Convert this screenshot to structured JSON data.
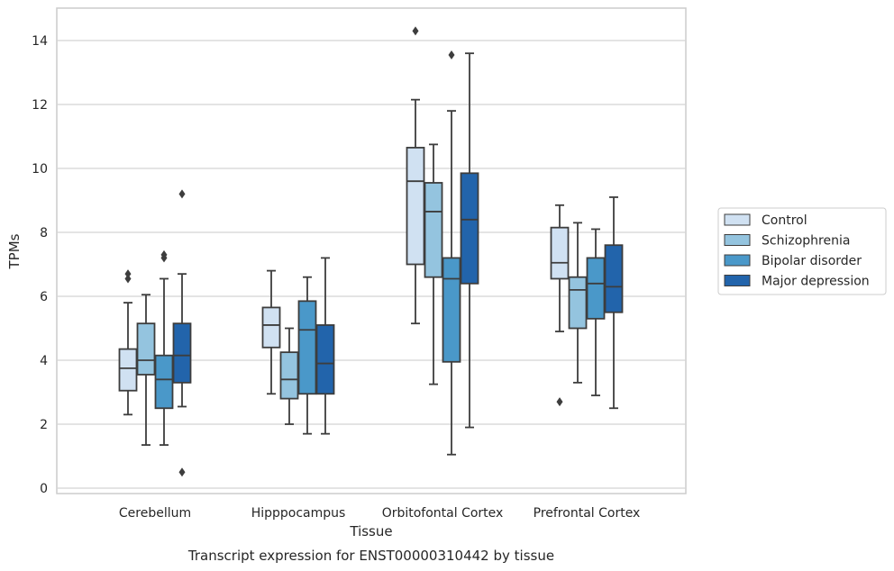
{
  "caption": "Transcript expression for ENST00000310442 by tissue",
  "chart_data": {
    "type": "box",
    "xlabel": "Tissue",
    "ylabel": "TPMs",
    "ylim": [
      -0.15,
      15
    ],
    "yticks": [
      0,
      2,
      4,
      6,
      8,
      10,
      12,
      14
    ],
    "grid": "horizontal",
    "legend_position": "right",
    "categories": [
      "Cerebellum",
      "Hipppocampus",
      "Orbitofontal Cortex",
      "Prefrontal Cortex"
    ],
    "series": [
      {
        "name": "Control",
        "color": "#d0e1f2",
        "boxes": [
          {
            "whisker_low": 2.3,
            "q1": 3.05,
            "median": 3.75,
            "q3": 4.35,
            "whisker_high": 5.8,
            "outliers": [
              6.55,
              6.7
            ]
          },
          {
            "whisker_low": 2.95,
            "q1": 4.4,
            "median": 5.1,
            "q3": 5.65,
            "whisker_high": 6.8,
            "outliers": []
          },
          {
            "whisker_low": 5.15,
            "q1": 7.0,
            "median": 9.6,
            "q3": 10.65,
            "whisker_high": 12.15,
            "outliers": [
              14.3
            ]
          },
          {
            "whisker_low": 4.9,
            "q1": 6.55,
            "median": 7.05,
            "q3": 8.15,
            "whisker_high": 8.85,
            "outliers": [
              2.7
            ]
          }
        ]
      },
      {
        "name": "Schizophrenia",
        "color": "#94c4df",
        "boxes": [
          {
            "whisker_low": 1.35,
            "q1": 3.55,
            "median": 4.0,
            "q3": 5.15,
            "whisker_high": 6.05,
            "outliers": []
          },
          {
            "whisker_low": 2.0,
            "q1": 2.8,
            "median": 3.4,
            "q3": 4.25,
            "whisker_high": 5.0,
            "outliers": []
          },
          {
            "whisker_low": 3.25,
            "q1": 6.6,
            "median": 8.65,
            "q3": 9.55,
            "whisker_high": 10.75,
            "outliers": []
          },
          {
            "whisker_low": 3.3,
            "q1": 5.0,
            "median": 6.2,
            "q3": 6.6,
            "whisker_high": 8.3,
            "outliers": []
          }
        ]
      },
      {
        "name": "Bipolar disorder",
        "color": "#4a98c9",
        "boxes": [
          {
            "whisker_low": 1.35,
            "q1": 2.5,
            "median": 3.4,
            "q3": 4.15,
            "whisker_high": 6.55,
            "outliers": [
              7.2,
              7.3
            ]
          },
          {
            "whisker_low": 1.7,
            "q1": 2.95,
            "median": 4.95,
            "q3": 5.85,
            "whisker_high": 6.6,
            "outliers": []
          },
          {
            "whisker_low": 1.05,
            "q1": 3.95,
            "median": 6.55,
            "q3": 7.2,
            "whisker_high": 11.8,
            "outliers": [
              13.55
            ]
          },
          {
            "whisker_low": 2.9,
            "q1": 5.3,
            "median": 6.4,
            "q3": 7.2,
            "whisker_high": 8.1,
            "outliers": []
          }
        ]
      },
      {
        "name": "Major depression",
        "color": "#2264ab",
        "boxes": [
          {
            "whisker_low": 2.55,
            "q1": 3.3,
            "median": 4.15,
            "q3": 5.15,
            "whisker_high": 6.7,
            "outliers": [
              9.2,
              0.5
            ]
          },
          {
            "whisker_low": 1.7,
            "q1": 2.95,
            "median": 3.9,
            "q3": 5.1,
            "whisker_high": 7.2,
            "outliers": []
          },
          {
            "whisker_low": 1.9,
            "q1": 6.4,
            "median": 8.4,
            "q3": 9.85,
            "whisker_high": 13.6,
            "outliers": []
          },
          {
            "whisker_low": 2.5,
            "q1": 5.5,
            "median": 6.3,
            "q3": 7.6,
            "whisker_high": 9.1,
            "outliers": []
          }
        ]
      }
    ]
  }
}
